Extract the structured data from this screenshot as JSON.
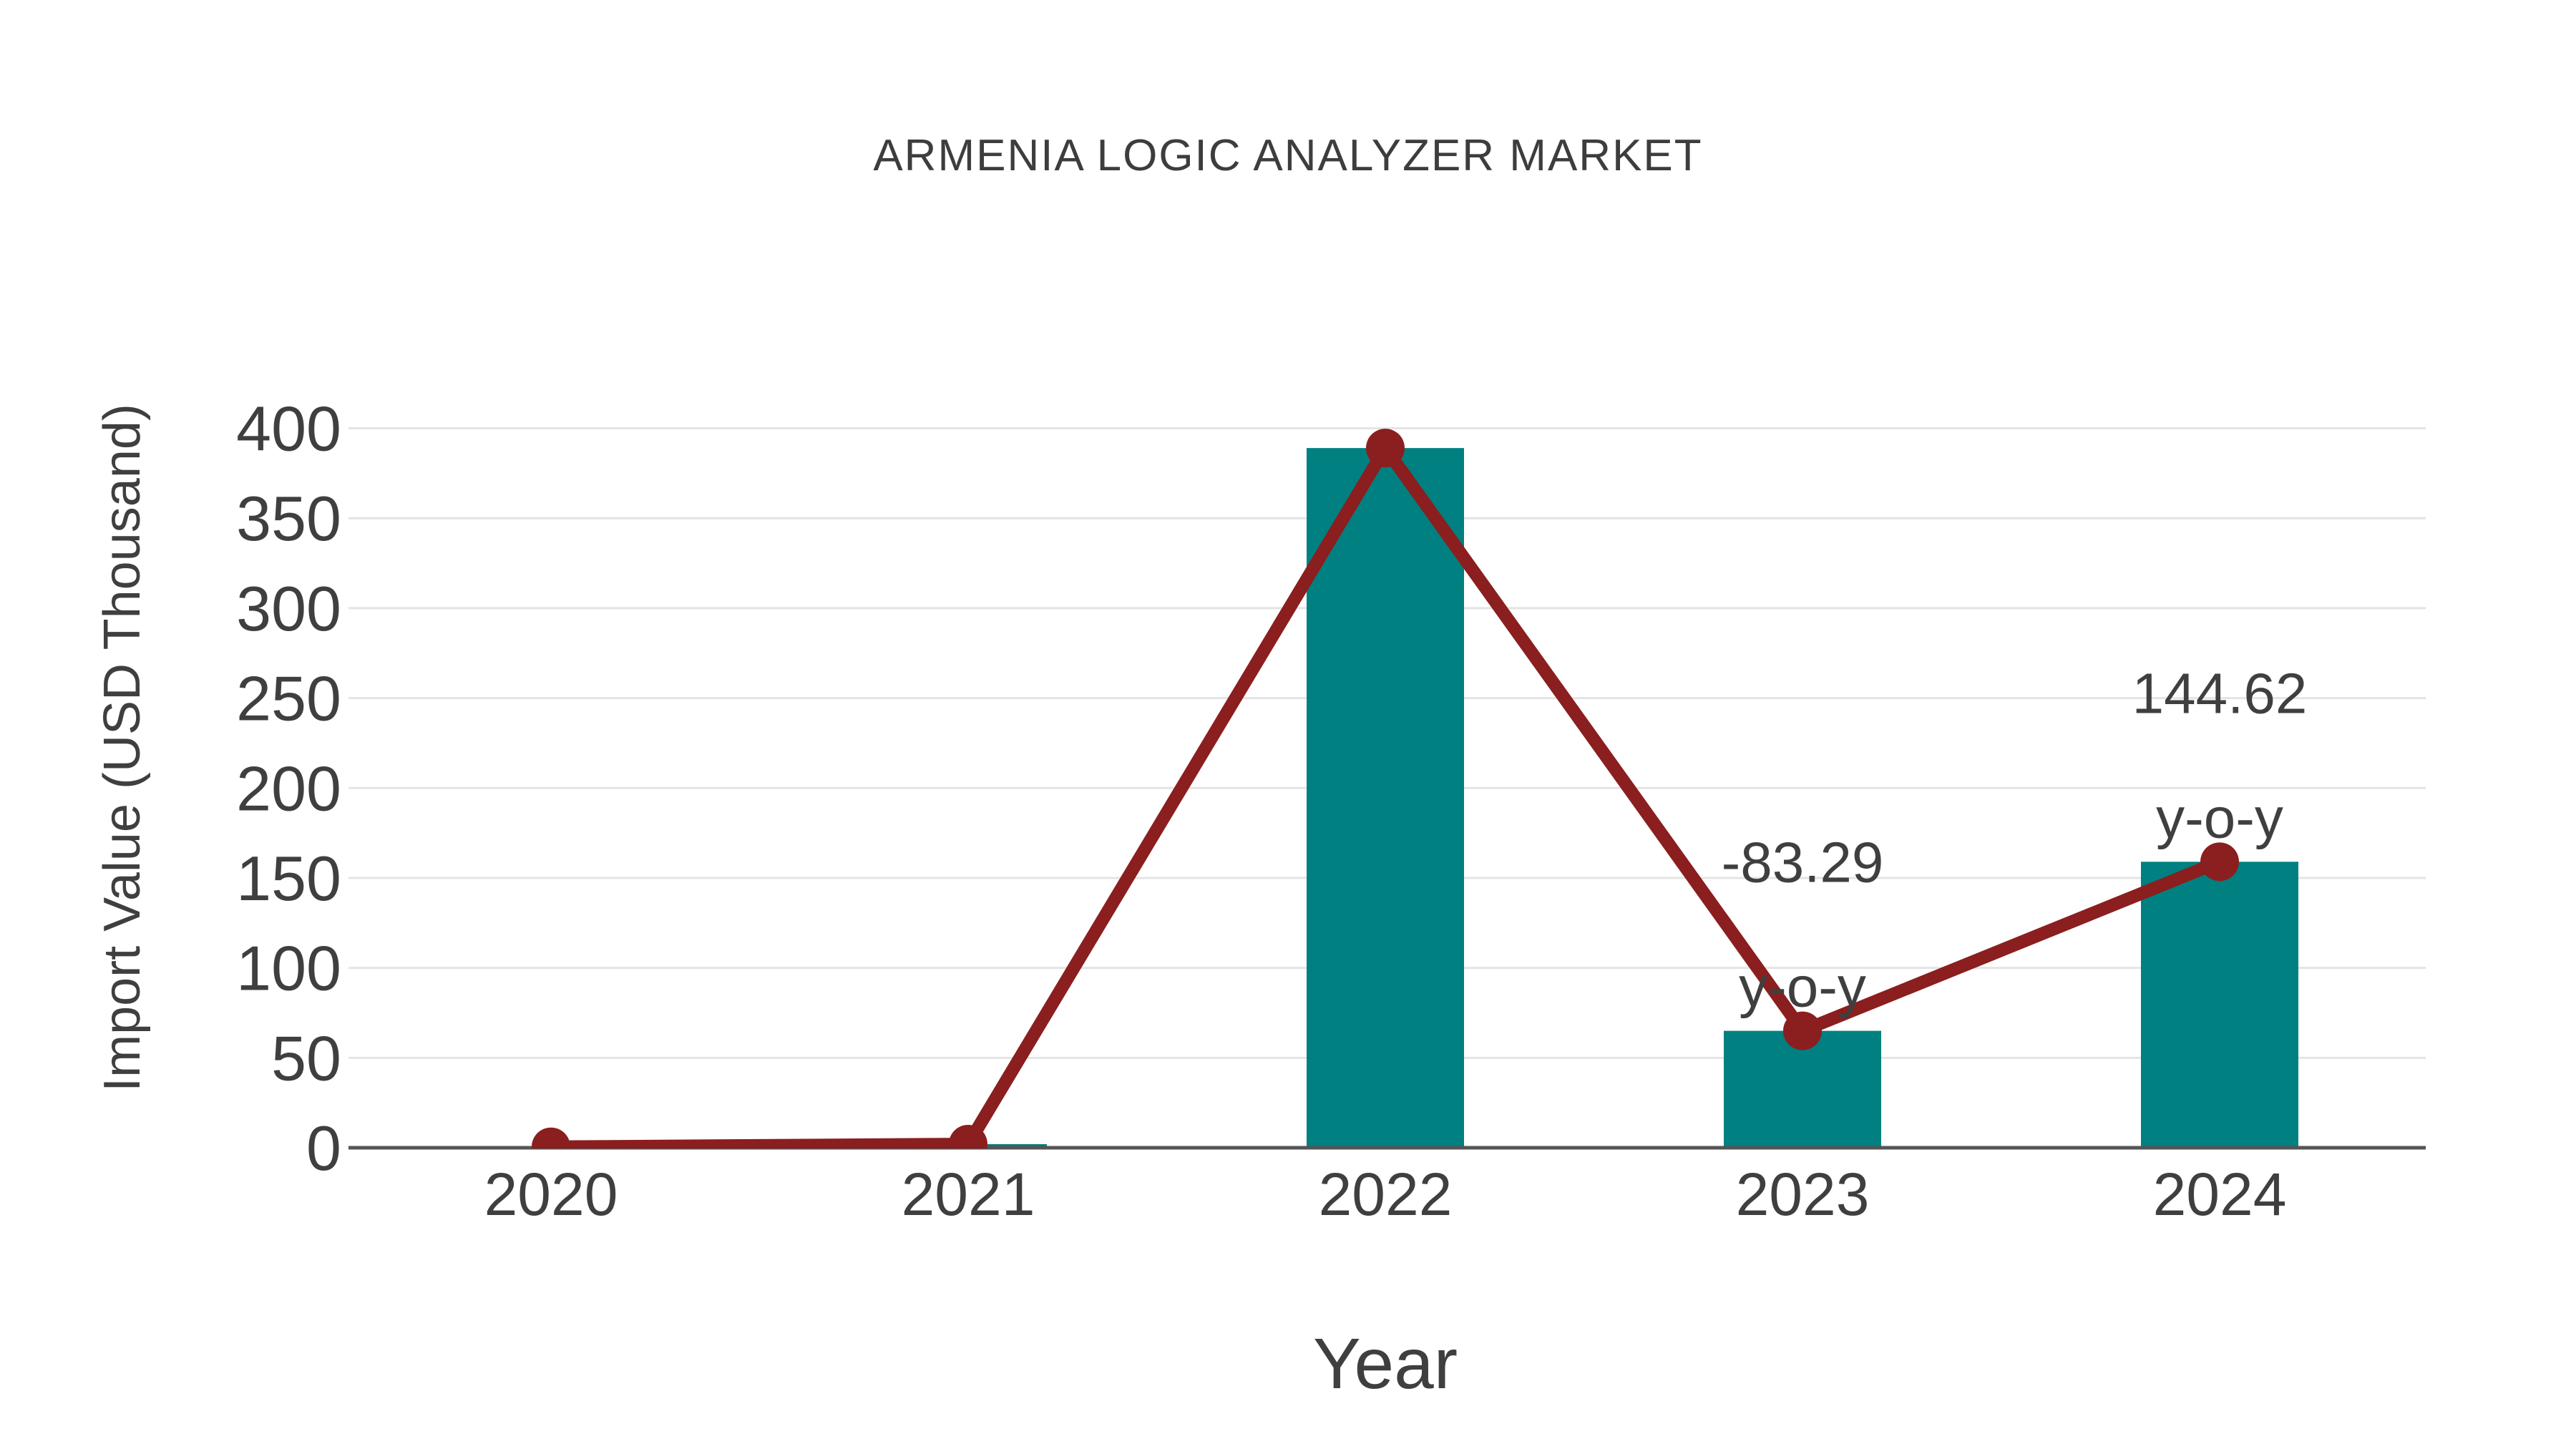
{
  "page": {
    "background": "#ffffff"
  },
  "chart_data": {
    "type": "bar",
    "overlay": "line",
    "title": "ARMENIA LOGIC ANALYZER MARKET",
    "xlabel": "Year",
    "ylabel": "Import Value (USD Thousand)",
    "categories": [
      "2020",
      "2021",
      "2022",
      "2023",
      "2024"
    ],
    "series": [
      {
        "name": "Import Value bars",
        "type": "bar",
        "color": "#008080",
        "values": [
          0.5,
          2,
          389,
          65,
          159
        ]
      },
      {
        "name": "Import Value trend",
        "type": "line",
        "color": "#8B1E1E",
        "values": [
          0.5,
          2,
          389,
          65,
          159
        ]
      }
    ],
    "annotations": [
      {
        "category": "2023",
        "lines": [
          "-83.29",
          "y-o-y"
        ]
      },
      {
        "category": "2024",
        "lines": [
          "144.62",
          "y-o-y"
        ]
      }
    ],
    "ylim": [
      0,
      400
    ],
    "yticks": [
      0,
      50,
      100,
      150,
      200,
      250,
      300,
      350,
      400
    ],
    "grid": true,
    "legend": "none"
  },
  "colors": {
    "text": "#3f3f3f",
    "axis_line": "#555555",
    "gridline": "#e4e4e4",
    "bar": "#008080",
    "line": "#8B1E1E"
  }
}
